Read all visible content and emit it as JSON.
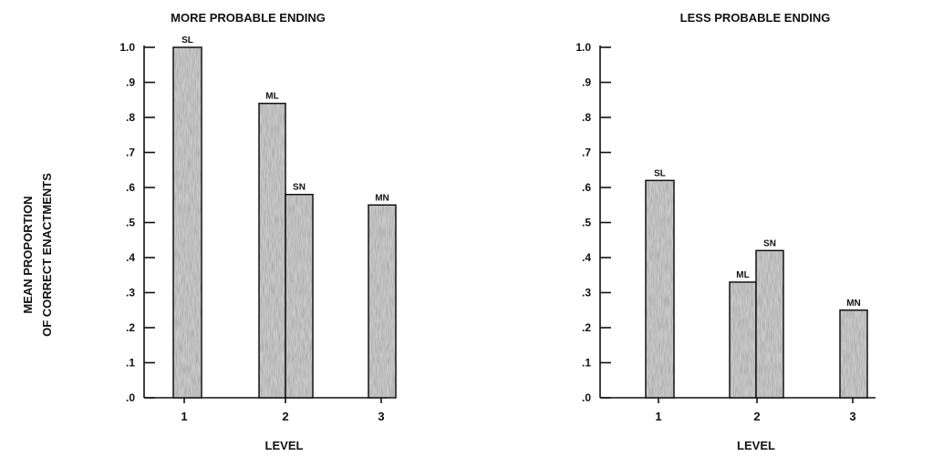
{
  "ylabel_line1": "MEAN PROPORTION",
  "ylabel_line2": "OF CORRECT ENACTMENTS",
  "chart_data": [
    {
      "type": "bar",
      "title": "MORE PROBABLE ENDING",
      "xlabel": "LEVEL",
      "ylabel": "MEAN PROPORTION OF CORRECT ENACTMENTS",
      "ylim": [
        0,
        1.0
      ],
      "yticks": [
        ".0",
        ".1",
        ".2",
        ".3",
        ".4",
        ".5",
        ".6",
        ".7",
        ".8",
        ".9",
        "1.0"
      ],
      "categories": [
        "1",
        "2",
        "3"
      ],
      "bars": [
        {
          "label": "SL",
          "level": "1",
          "value": 1.0
        },
        {
          "label": "ML",
          "level": "2",
          "value": 0.84
        },
        {
          "label": "SN",
          "level": "2",
          "value": 0.58
        },
        {
          "label": "MN",
          "level": "3",
          "value": 0.55
        }
      ]
    },
    {
      "type": "bar",
      "title": "LESS PROBABLE ENDING",
      "xlabel": "LEVEL",
      "ylabel": "",
      "ylim": [
        0,
        1.0
      ],
      "yticks": [
        ".0",
        ".1",
        ".2",
        ".3",
        ".4",
        ".5",
        ".6",
        ".7",
        ".8",
        ".9",
        "1.0"
      ],
      "categories": [
        "1",
        "2",
        "3"
      ],
      "bars": [
        {
          "label": "SL",
          "level": "1",
          "value": 0.62
        },
        {
          "label": "ML",
          "level": "2",
          "value": 0.33
        },
        {
          "label": "SN",
          "level": "2",
          "value": 0.42
        },
        {
          "label": "MN",
          "level": "3",
          "value": 0.25
        }
      ]
    }
  ],
  "colors": {
    "bar_fill": "#c9c9c9",
    "ink": "#111111",
    "background": "#ffffff"
  }
}
